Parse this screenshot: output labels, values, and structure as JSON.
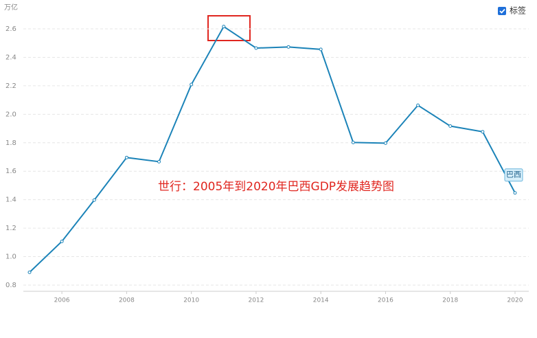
{
  "chart_data": {
    "type": "line",
    "unit_label": "万亿",
    "toggle_label": "标签",
    "annotation": "世行：2005年到2020年巴西GDP发展趋势图",
    "x": [
      2005,
      2006,
      2007,
      2008,
      2009,
      2010,
      2011,
      2012,
      2013,
      2014,
      2015,
      2016,
      2017,
      2018,
      2019,
      2020
    ],
    "series": [
      {
        "name": "巴西",
        "color": "#1b83b8",
        "values": [
          0.89,
          1.107,
          1.397,
          1.696,
          1.667,
          2.209,
          2.616,
          2.465,
          2.473,
          2.456,
          1.802,
          1.797,
          2.063,
          1.917,
          1.877,
          1.448
        ]
      }
    ],
    "xlim": [
      2005,
      2020
    ],
    "ylim": [
      0.8,
      2.6
    ],
    "xticks": [
      2006,
      2008,
      2010,
      2012,
      2014,
      2016,
      2018,
      2020
    ],
    "yticks": [
      0.8,
      {
        "value": 1,
        "label": "1.0"
      },
      1.2,
      1.4,
      1.6,
      1.8,
      {
        "value": 2,
        "label": "2.0"
      },
      2.2,
      2.4,
      2.6
    ],
    "grid": true
  }
}
